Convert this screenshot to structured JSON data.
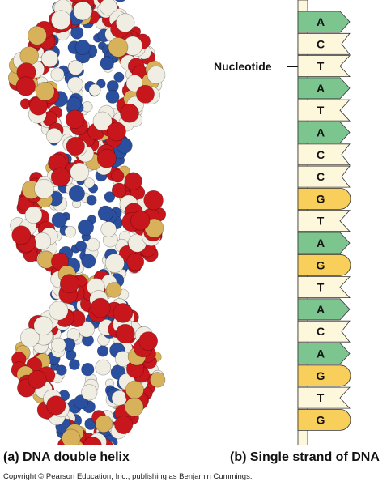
{
  "labels": {
    "nucleotide": "Nucleotide",
    "caption_a": "(a) DNA double helix",
    "caption_b": "(b) Single strand of DNA",
    "copyright": "Copyright © Pearson Education, Inc., publishing as Benjamin Cummings."
  },
  "strand": {
    "bases": [
      "A",
      "C",
      "T",
      "A",
      "T",
      "A",
      "C",
      "C",
      "G",
      "T",
      "A",
      "G",
      "T",
      "A",
      "C",
      "A",
      "G",
      "T",
      "G"
    ]
  },
  "colors": {
    "A": "#7cc58f",
    "C": "#fdf7dc",
    "T": "#fdf7dc",
    "G": "#f7cf5a",
    "backbone": "#fdf7dc",
    "outline": "#333333",
    "atom_red": "#c8161d",
    "atom_white": "#f0ede3",
    "atom_blue": "#2a4f9e",
    "atom_tan": "#d8b25a"
  }
}
